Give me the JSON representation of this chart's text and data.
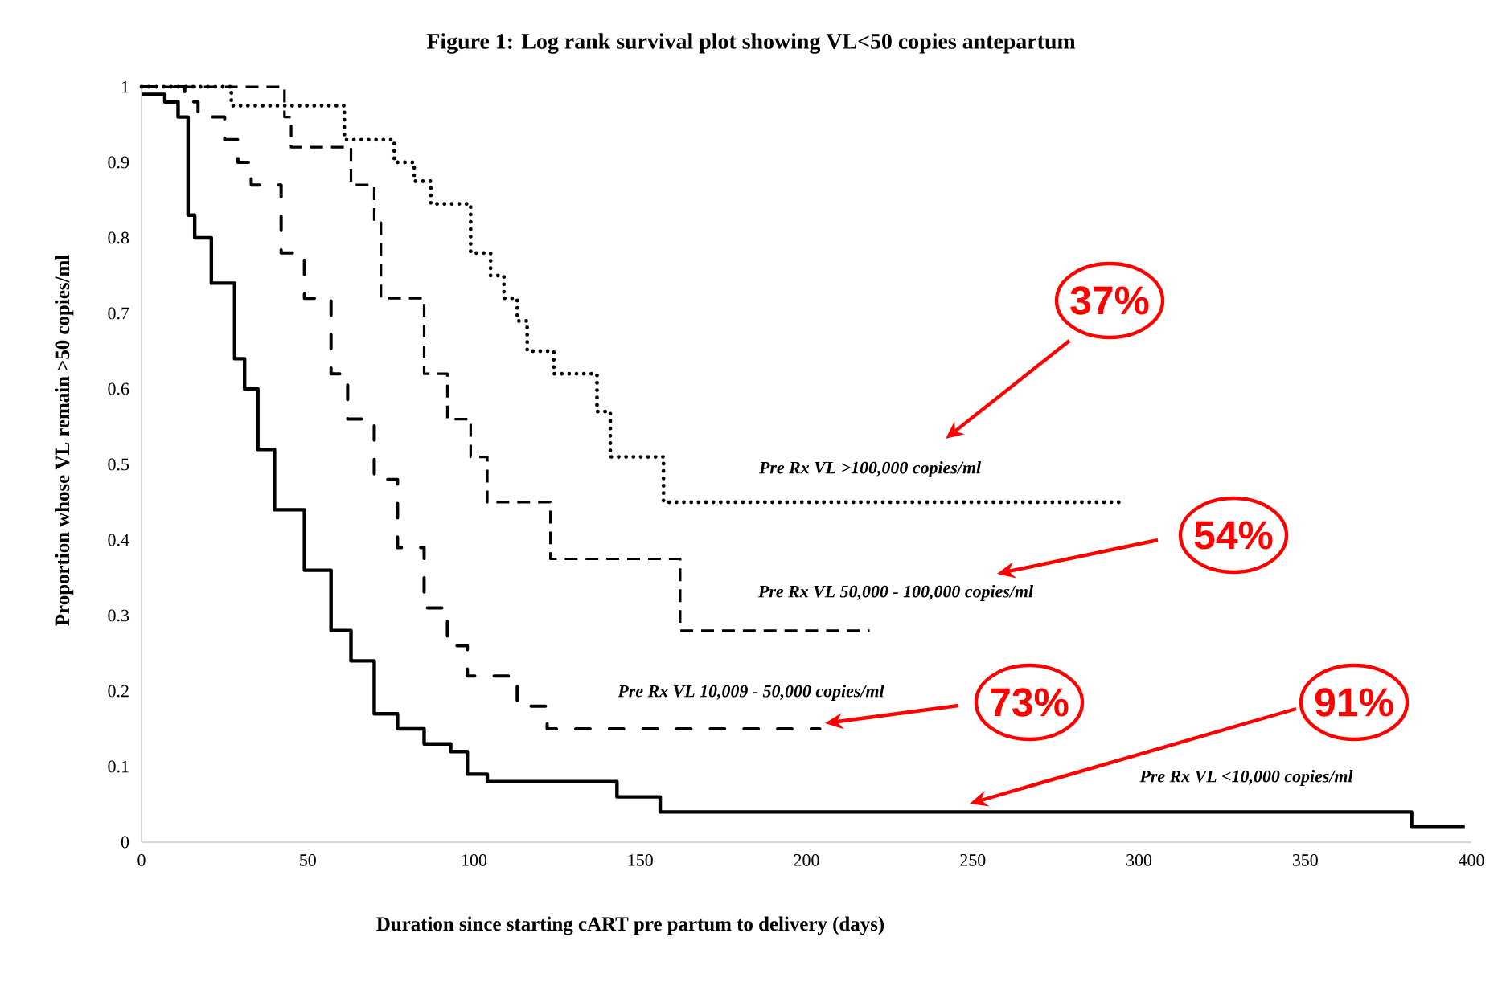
{
  "chart_data": {
    "type": "step",
    "title": "Figure 1: Log rank survival plot showing VL<50 copies antepartum",
    "xlabel": "Duration since starting cART pre partum to delivery (days)",
    "ylabel": "Proportion whose VL remain >50 copies/ml",
    "series": [
      {
        "name": "Pre Rx VL >100,000 copies/ml",
        "color": "#000000",
        "line_style": "dotted",
        "x": [
          0,
          27,
          61,
          76,
          82,
          87,
          99,
          105,
          109,
          113,
          116,
          124,
          137,
          141,
          157,
          294
        ],
        "values": [
          1.0,
          0.975,
          0.93,
          0.9,
          0.875,
          0.845,
          0.78,
          0.75,
          0.72,
          0.69,
          0.65,
          0.62,
          0.57,
          0.51,
          0.45,
          0.45
        ]
      },
      {
        "name": "Pre Rx VL 50,000 - 100,000 copies/ml",
        "color": "#000000",
        "line_style": "dashed",
        "x": [
          0,
          43,
          45,
          63,
          70,
          72,
          85,
          92,
          99,
          104,
          123,
          162,
          219
        ],
        "values": [
          1.0,
          0.96,
          0.92,
          0.87,
          0.82,
          0.72,
          0.62,
          0.56,
          0.51,
          0.45,
          0.375,
          0.28,
          0.28
        ]
      },
      {
        "name": "Pre Rx VL  10,009 - 50,000 copies/ml",
        "color": "#000000",
        "line_style": "dashdot",
        "x": [
          0,
          13,
          17,
          25,
          29,
          33,
          42,
          49,
          57,
          62,
          70,
          77,
          85,
          92,
          98,
          113,
          122,
          204
        ],
        "values": [
          1.0,
          0.98,
          0.96,
          0.93,
          0.9,
          0.87,
          0.78,
          0.72,
          0.62,
          0.56,
          0.48,
          0.39,
          0.31,
          0.26,
          0.22,
          0.18,
          0.15,
          0.15
        ]
      },
      {
        "name": "Pre Rx VL <10,000 copies/ml",
        "color": "#000000",
        "line_style": "solid",
        "x": [
          0,
          7,
          11,
          14,
          16,
          21,
          28,
          31,
          35,
          40,
          49,
          57,
          63,
          70,
          77,
          85,
          93,
          98,
          104,
          143,
          156,
          382,
          398
        ],
        "values": [
          0.99,
          0.98,
          0.96,
          0.83,
          0.8,
          0.74,
          0.64,
          0.6,
          0.52,
          0.44,
          0.36,
          0.28,
          0.24,
          0.17,
          0.15,
          0.13,
          0.12,
          0.09,
          0.08,
          0.06,
          0.04,
          0.02,
          0.02
        ]
      }
    ],
    "xlim": [
      0,
      400
    ],
    "xticks": [
      0,
      50,
      100,
      150,
      200,
      250,
      300,
      350,
      400
    ],
    "ylim": [
      0,
      1
    ],
    "yticks": [
      0,
      0.1,
      0.2,
      0.3,
      0.4,
      0.5,
      0.6,
      0.7,
      0.8,
      0.9,
      1
    ],
    "grid": false,
    "legend": false,
    "marker": "none",
    "annotations": [
      "37%",
      "54%",
      "73%",
      "91%"
    ]
  }
}
